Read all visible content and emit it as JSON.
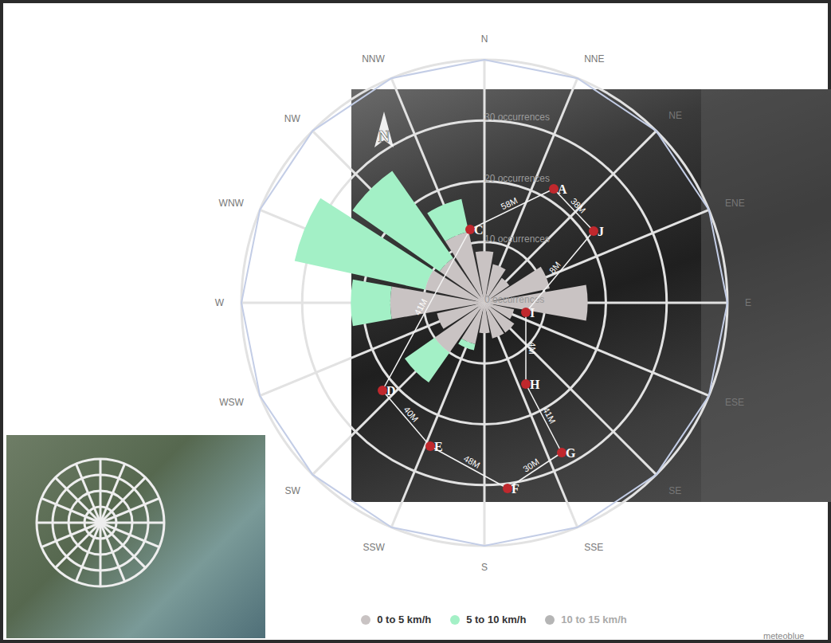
{
  "chart_data": {
    "type": "wind_rose",
    "categories": [
      "N",
      "NNE",
      "NE",
      "ENE",
      "E",
      "ESE",
      "SE",
      "SSE",
      "S",
      "SSW",
      "SW",
      "WSW",
      "W",
      "WNW",
      "NW",
      "NNW"
    ],
    "series": [
      {
        "name": "0 to 5 km/h",
        "color": "#c9c3c3",
        "values": [
          8.5,
          6.5,
          5,
          11,
          17,
          5,
          6,
          6,
          5,
          7,
          10,
          8,
          15.5,
          10,
          9,
          12
        ]
      },
      {
        "name": "5 to 10 km/h",
        "color": "#a3f0c6",
        "values": [
          0,
          0,
          0,
          0,
          0,
          0,
          0,
          0,
          0,
          1,
          6,
          0,
          6.5,
          22,
          17.5,
          5.5
        ]
      },
      {
        "name": "10 to 15 km/h",
        "color": "#b5b5b5",
        "values": [
          0,
          0,
          0,
          0,
          0,
          0,
          0,
          0,
          0,
          0,
          0,
          0,
          0,
          0,
          0,
          0
        ]
      }
    ],
    "ylim": [
      0,
      40
    ],
    "yticks": [
      {
        "value": 0,
        "label": "0 occurrences"
      },
      {
        "value": 10,
        "label": "10 occurrences"
      },
      {
        "value": 20,
        "label": "20 occurrences"
      },
      {
        "value": 30,
        "label": "30 occurrences"
      }
    ],
    "legend": "bottom",
    "grid": true,
    "annotations": {
      "points": [
        "C",
        "A",
        "J",
        "I",
        "H",
        "G",
        "F",
        "E",
        "D"
      ],
      "distances": [
        "58M",
        "38M",
        "8M",
        "4M",
        "41M",
        "30M",
        "48M",
        "40M",
        "41M"
      ],
      "north": "N",
      "source": "meteoblue"
    }
  }
}
